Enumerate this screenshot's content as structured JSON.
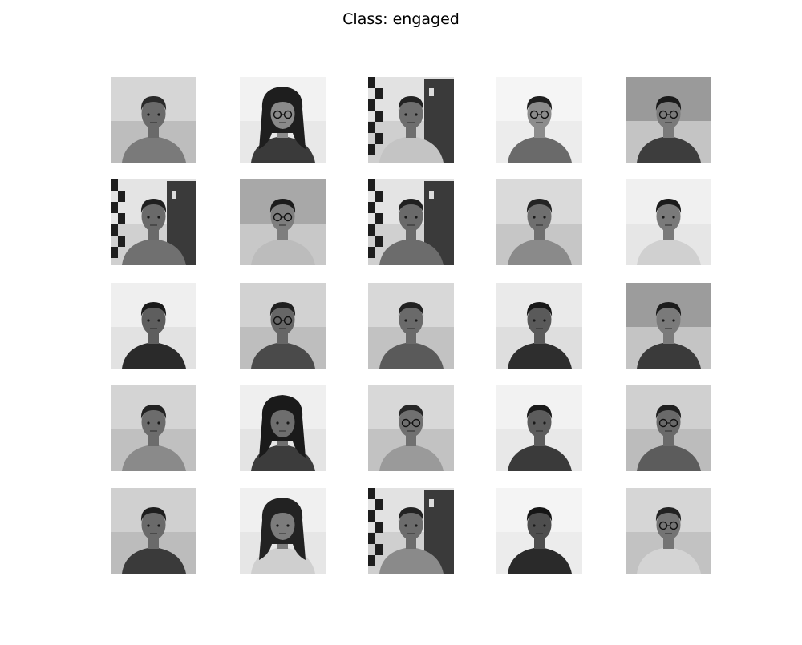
{
  "figure": {
    "title": "Class: engaged"
  },
  "grid": {
    "rows": 5,
    "cols": 5
  },
  "images": [
    {
      "bg": "#bdbdbd",
      "wall": "#d6d6d6",
      "face": "#6a6a6a",
      "hair": "#2a2a2a",
      "shirt": "#7a7a7a",
      "glasses": false,
      "longhair": false,
      "checker": false,
      "door": false
    },
    {
      "bg": "#e8e8e8",
      "wall": "#f2f2f2",
      "face": "#8a8a8a",
      "hair": "#1e1e1e",
      "shirt": "#3a3a3a",
      "glasses": true,
      "longhair": true,
      "checker": false,
      "door": false
    },
    {
      "bg": "#cfcfcf",
      "wall": "#e2e2e2",
      "face": "#6e6e6e",
      "hair": "#222222",
      "shirt": "#c4c4c4",
      "glasses": false,
      "longhair": false,
      "checker": true,
      "door": true
    },
    {
      "bg": "#ececec",
      "wall": "#f5f5f5",
      "face": "#8c8c8c",
      "hair": "#1f1f1f",
      "shirt": "#6a6a6a",
      "glasses": true,
      "longhair": false,
      "checker": false,
      "door": false
    },
    {
      "bg": "#c4c4c4",
      "wall": "#9a9a9a",
      "face": "#7a7a7a",
      "hair": "#1a1a1a",
      "shirt": "#3d3d3d",
      "glasses": true,
      "longhair": false,
      "checker": false,
      "door": false
    },
    {
      "bg": "#d0d0d0",
      "wall": "#e4e4e4",
      "face": "#6a6a6a",
      "hair": "#202020",
      "shirt": "#707070",
      "glasses": false,
      "longhair": false,
      "checker": true,
      "door": true
    },
    {
      "bg": "#c8c8c8",
      "wall": "#a8a8a8",
      "face": "#7e7e7e",
      "hair": "#1c1c1c",
      "shirt": "#bcbcbc",
      "glasses": true,
      "longhair": false,
      "checker": false,
      "door": false
    },
    {
      "bg": "#d0d0d0",
      "wall": "#e4e4e4",
      "face": "#6a6a6a",
      "hair": "#202020",
      "shirt": "#6c6c6c",
      "glasses": false,
      "longhair": false,
      "checker": true,
      "door": true
    },
    {
      "bg": "#c6c6c6",
      "wall": "#dadada",
      "face": "#6f6f6f",
      "hair": "#242424",
      "shirt": "#8a8a8a",
      "glasses": false,
      "longhair": false,
      "checker": false,
      "door": false
    },
    {
      "bg": "#e6e6e6",
      "wall": "#f0f0f0",
      "face": "#7a7a7a",
      "hair": "#1b1b1b",
      "shirt": "#d0d0d0",
      "glasses": false,
      "longhair": false,
      "checker": false,
      "door": false
    },
    {
      "bg": "#e2e2e2",
      "wall": "#efefef",
      "face": "#5e5e5e",
      "hair": "#1a1a1a",
      "shirt": "#2a2a2a",
      "glasses": false,
      "longhair": false,
      "checker": false,
      "door": false
    },
    {
      "bg": "#bebebe",
      "wall": "#d2d2d2",
      "face": "#666666",
      "hair": "#202020",
      "shirt": "#4a4a4a",
      "glasses": true,
      "longhair": false,
      "checker": false,
      "door": false
    },
    {
      "bg": "#c2c2c2",
      "wall": "#d8d8d8",
      "face": "#6a6a6a",
      "hair": "#222222",
      "shirt": "#5a5a5a",
      "glasses": false,
      "longhair": false,
      "checker": false,
      "door": false
    },
    {
      "bg": "#dedede",
      "wall": "#eaeaea",
      "face": "#5a5a5a",
      "hair": "#181818",
      "shirt": "#2e2e2e",
      "glasses": false,
      "longhair": false,
      "checker": false,
      "door": false
    },
    {
      "bg": "#c4c4c4",
      "wall": "#9c9c9c",
      "face": "#7a7a7a",
      "hair": "#1c1c1c",
      "shirt": "#3a3a3a",
      "glasses": false,
      "longhair": false,
      "checker": false,
      "door": false
    },
    {
      "bg": "#c0c0c0",
      "wall": "#d4d4d4",
      "face": "#6c6c6c",
      "hair": "#222222",
      "shirt": "#8a8a8a",
      "glasses": false,
      "longhair": false,
      "checker": false,
      "door": false
    },
    {
      "bg": "#e4e4e4",
      "wall": "#efefef",
      "face": "#6e6e6e",
      "hair": "#1a1a1a",
      "shirt": "#3c3c3c",
      "glasses": false,
      "longhair": true,
      "checker": false,
      "door": false
    },
    {
      "bg": "#c2c2c2",
      "wall": "#d8d8d8",
      "face": "#707070",
      "hair": "#262626",
      "shirt": "#9a9a9a",
      "glasses": true,
      "longhair": false,
      "checker": false,
      "door": false
    },
    {
      "bg": "#e8e8e8",
      "wall": "#f2f2f2",
      "face": "#5c5c5c",
      "hair": "#1a1a1a",
      "shirt": "#3a3a3a",
      "glasses": false,
      "longhair": false,
      "checker": false,
      "door": false
    },
    {
      "bg": "#bcbcbc",
      "wall": "#d0d0d0",
      "face": "#6a6a6a",
      "hair": "#202020",
      "shirt": "#5c5c5c",
      "glasses": true,
      "longhair": false,
      "checker": false,
      "door": false
    },
    {
      "bg": "#bcbcbc",
      "wall": "#d0d0d0",
      "face": "#6a6a6a",
      "hair": "#1e1e1e",
      "shirt": "#3a3a3a",
      "glasses": false,
      "longhair": false,
      "checker": false,
      "door": false
    },
    {
      "bg": "#e6e6e6",
      "wall": "#f0f0f0",
      "face": "#7c7c7c",
      "hair": "#222222",
      "shirt": "#cfcfcf",
      "glasses": false,
      "longhair": true,
      "checker": false,
      "door": false
    },
    {
      "bg": "#cfcfcf",
      "wall": "#e2e2e2",
      "face": "#6c6c6c",
      "hair": "#232323",
      "shirt": "#8a8a8a",
      "glasses": false,
      "longhair": false,
      "checker": true,
      "door": true
    },
    {
      "bg": "#ececec",
      "wall": "#f4f4f4",
      "face": "#4e4e4e",
      "hair": "#161616",
      "shirt": "#2a2a2a",
      "glasses": false,
      "longhair": false,
      "checker": false,
      "door": false
    },
    {
      "bg": "#c2c2c2",
      "wall": "#d6d6d6",
      "face": "#747474",
      "hair": "#222222",
      "shirt": "#d4d4d4",
      "glasses": true,
      "longhair": false,
      "checker": false,
      "door": false
    }
  ]
}
